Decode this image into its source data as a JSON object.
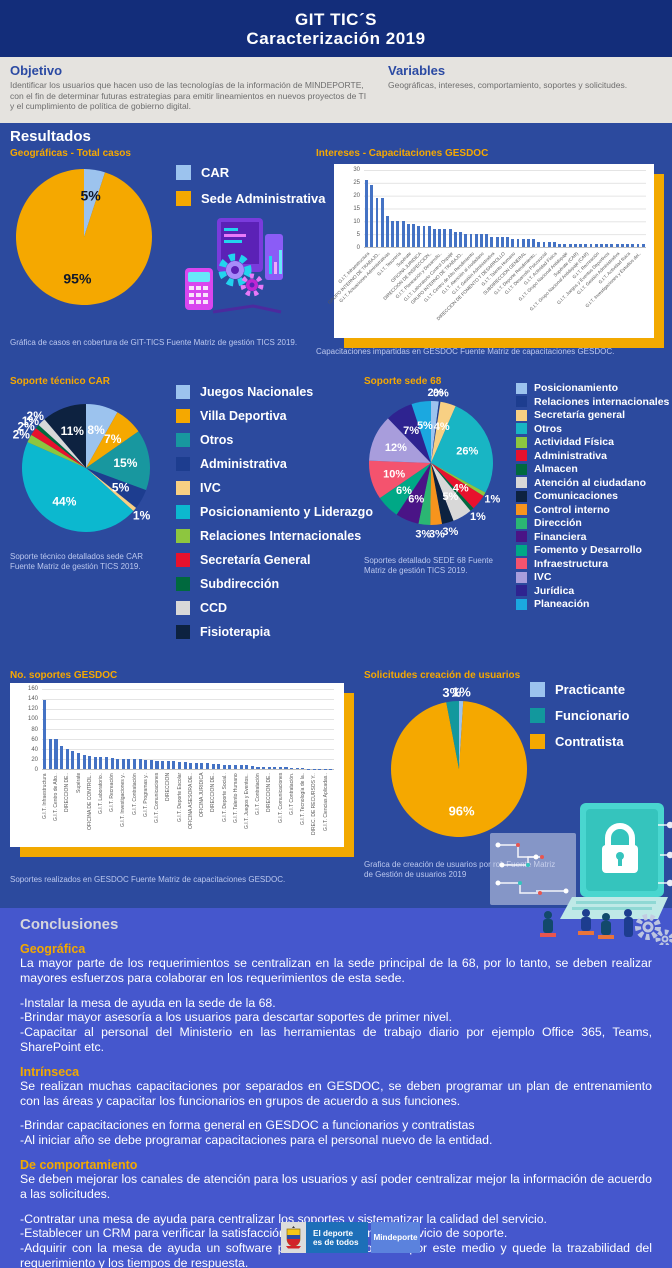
{
  "header": {
    "title_line1": "GIT TIC´S",
    "title_line2": "Caracterización 2019"
  },
  "objetivo": {
    "heading": "Objetivo",
    "body": "Identificar los usuarios que hacen uso de las tecnologías de la información de MINDEPORTE, con el fin de determinar futuras estrategias para emitir lineamientos en nuevos proyectos de TI y el cumplimiento de política de gobierno digital."
  },
  "variables": {
    "heading": "Variables",
    "body": "Geográficas, intereses, comportamiento, soportes y solicitudes."
  },
  "resultados_heading": "Resultados",
  "colors": {
    "header_navy": "#132d7a",
    "results_blue": "#2c4a9e",
    "conclusions_blue": "#4557cd",
    "accent_orange": "#f6a800",
    "bar_blue": "#4472c4",
    "band_gray": "#e5e3df"
  },
  "chart_data": [
    {
      "key": "geograficas",
      "type": "pie",
      "title": "Geográficas - Total casos",
      "caption": "Gráfica de casos en cobertura de GIT-TICS Fuente Matriz de gestión TICS 2019.",
      "pct_color": "#10182b",
      "pct_size": 14,
      "inside_min": 5,
      "slices": [
        {
          "label": "CAR",
          "value": 5,
          "color": "#9cc3ee"
        },
        {
          "label": "Sede Administrativa",
          "value": 95,
          "color": "#f5a800"
        }
      ]
    },
    {
      "key": "intereses",
      "type": "bar",
      "title": "Intereses - Capacitaciones GESDOC",
      "caption": "Capacitaciones impartidas en GESDOC Fuente Matriz de capacitaciones GESDOC.",
      "ylim": [
        0,
        30
      ],
      "yticks": [
        0,
        5,
        10,
        15,
        20,
        25,
        30
      ],
      "bar_color": "#4472c4",
      "label_style": "angled",
      "label_every": 2,
      "values": [
        26,
        24,
        19,
        19,
        12,
        10,
        10,
        10,
        9,
        9,
        8,
        8,
        8,
        7,
        7,
        7,
        7,
        6,
        6,
        5,
        5,
        5,
        5,
        5,
        4,
        4,
        4,
        4,
        3,
        3,
        3,
        3,
        3,
        2,
        2,
        2,
        2,
        1,
        1,
        1,
        1,
        1,
        1,
        1,
        1,
        1,
        1,
        1,
        1,
        1,
        1,
        1,
        1,
        1
      ],
      "labels": [
        "G.I.T. Infraestructura",
        "GRUPO INTERNO DE TRABAJO..",
        "G.I.T. Actuaciones Administrativas",
        "G.I.T. Tesorería",
        "Supérate",
        "OFICINA JURIDICA",
        "DIRECCION DE INSPECCION..",
        "G.I.T. Planeación y Desarrollo..",
        "G.I.T. Laboratorio Control Dopaje",
        "GRUPO INTERNO DE TRABAJO..",
        "G.I.T. Centro de Alto Rendimiento",
        "G.I.T. Atención al ciudadano",
        "G.I.T. Gestión Administrativa",
        "DIRECCION DE FOMENTO Y DESARROLLO",
        "G.I.T. Talento Humano",
        "SUBDIRECCION GENERAL",
        "G.I.T. Deporte Rendimiento..",
        "G.I.T. Desarrollo Psicosocial",
        "G.I.T. Actividad Física",
        "G.I.T. Grupo Nacional Antidopaje",
        "Supérate (CAR)",
        "G.I.T. Grupo Nacional Antidopaje (CAR)",
        "G.I.T. Recreación",
        "G.I.T. Juegos y Eventos Deportivos",
        "G.I.T. Gestión Administrativa",
        "G.I.T. Actividad física",
        "G.I.T. Investigaciones y Estudios del.."
      ]
    },
    {
      "key": "soporte_car",
      "type": "pie",
      "title": "Soporte técnico CAR",
      "caption": "Soporte técnico detallados sede CAR Fuente Matriz de gestión TICS 2019.",
      "pct_color": "#ffffff",
      "pct_size": 12,
      "inside_min": 5,
      "slices": [
        {
          "label": "Juegos Nacionales",
          "value": 8,
          "color": "#9cc3ee"
        },
        {
          "label": "Villa Deportiva",
          "value": 7,
          "color": "#f5a800"
        },
        {
          "label": "Otros",
          "value": 15,
          "color": "#18979f"
        },
        {
          "label": "Administrativa",
          "value": 5,
          "color": "#1d3d8f"
        },
        {
          "label": "IVC",
          "value": 1,
          "color": "#f8d083"
        },
        {
          "label": "Posicionamiento y Liderazgo",
          "value": 44,
          "color": "#0cb8cf"
        },
        {
          "label": "Relaciones Internacionales",
          "value": 2,
          "color": "#8dc63f"
        },
        {
          "label": "Secretaría General",
          "value": 2,
          "color": "#e8112d"
        },
        {
          "label": "Subdirección",
          "value": 1,
          "color": "#00693e"
        },
        {
          "label": "CCD",
          "value": 2,
          "color": "#d8d8d8"
        },
        {
          "label": "Fisioterapia",
          "value": 11,
          "color": "#0d2240"
        }
      ]
    },
    {
      "key": "sede68",
      "type": "pie",
      "title": "Soporte sede 68",
      "caption": "Soportes detallado SEDE 68 Fuente Matriz de gestión TICS 2019.",
      "pct_color": "#ffffff",
      "pct_size": 11,
      "inside_min": 4,
      "slices": [
        {
          "label": "Posicionamiento",
          "value": 2,
          "color": "#9cc3ee"
        },
        {
          "label": "Relaciones internacionales",
          "value": 0,
          "color": "#1d3d8f"
        },
        {
          "label": "Secretaría general",
          "value": 4,
          "color": "#f8d083"
        },
        {
          "label": "Otros",
          "value": 26,
          "color": "#18b5c4"
        },
        {
          "label": "Actividad Física",
          "value": 1,
          "color": "#8dc63f"
        },
        {
          "label": "Administrativa",
          "value": 4,
          "color": "#e8112d"
        },
        {
          "label": "Almacen",
          "value": 1,
          "color": "#00693e"
        },
        {
          "label": "Atención al ciudadano",
          "value": 5,
          "color": "#d8d8d8"
        },
        {
          "label": "Comunicaciones",
          "value": 3,
          "color": "#0d2240"
        },
        {
          "label": "Control interno",
          "value": 3,
          "color": "#f7941d"
        },
        {
          "label": "Dirección",
          "value": 3,
          "color": "#2bb673"
        },
        {
          "label": "Financiera",
          "value": 6,
          "color": "#4a1486"
        },
        {
          "label": "Fomento y Desarrollo",
          "value": 6,
          "color": "#00a886"
        },
        {
          "label": "Infraestructura",
          "value": 10,
          "color": "#f4536e"
        },
        {
          "label": "IVC",
          "value": 12,
          "color": "#a89ddc"
        },
        {
          "label": "Jurídica",
          "value": 7,
          "color": "#2e2390"
        },
        {
          "label": "Planeación",
          "value": 5,
          "color": "#1ba8e0"
        }
      ]
    },
    {
      "key": "soportes_gesdoc",
      "type": "bar",
      "title": "No. soportes GESDOC",
      "caption": "Soportes realizados en GESDOC Fuente Matriz de capacitaciones GESDOC.",
      "ylim": [
        0,
        160
      ],
      "yticks": [
        0,
        20,
        40,
        60,
        80,
        100,
        120,
        140,
        160
      ],
      "bar_color": "#4472c4",
      "label_style": "vertical",
      "label_every": 2,
      "values": [
        138,
        60,
        59,
        46,
        40,
        36,
        32,
        28,
        26,
        25,
        24,
        23,
        22,
        21,
        20,
        20,
        19,
        19,
        18,
        18,
        17,
        16,
        16,
        15,
        14,
        14,
        13,
        12,
        12,
        11,
        10,
        10,
        9,
        9,
        8,
        8,
        7,
        6,
        5,
        5,
        4,
        4,
        3,
        3,
        2,
        2,
        2,
        1,
        1,
        1,
        1,
        1
      ],
      "labels": [
        "G.I.T. Infraestructura",
        "G.I.T. Centro de Alto..",
        "DIRECCION DE..",
        "Supérate",
        "OFICINA DE CONTROL..",
        "G.I.T. Laboratorio..",
        "G.I.T. Recreación",
        "G.I.T. Investigaciones y..",
        "G.I.T. Contratación",
        "G.I.T. Programas y..",
        "G.I.T. Comunicaciones",
        "DIRECCION",
        "G.I.T. Deporte Escolar",
        "OFICINA ASESORA DE..",
        "OFICINA JURIDICA",
        "DIRECCION DE..",
        "G.I.T. Deporte Social..",
        "G.I.T. Talento Humano",
        "G.I.T. Juegos y Eventos..",
        "G.I.T. Contratación",
        "DIRECCION DE..",
        "G.I.T. Comunicaciones",
        "G.I.T Contratación.",
        "G.I.T. Tecnología de la..",
        "DIREC. DE RECURSOS Y..",
        "G.I.T. Ciencias Aplicadas.."
      ]
    },
    {
      "key": "usuarios",
      "type": "pie",
      "title": "Solicitudes creación de usuarios",
      "caption": "Grafica de creación de usuarios por rol. Fuente Matriz de Gestión de usuarios 2019",
      "pct_color": "#ffffff",
      "pct_size": 13,
      "inside_min": 5,
      "legend_order": [
        0,
        2,
        1
      ],
      "slices": [
        {
          "label": "Practicante",
          "value": 1,
          "color": "#9cc3ee"
        },
        {
          "label": "Contratista",
          "value": 96,
          "color": "#f5a800"
        },
        {
          "label": "Funcionario",
          "value": 3,
          "color": "#12989d"
        }
      ]
    }
  ],
  "conclusiones": {
    "heading": "Conclusiones",
    "sections": [
      {
        "heading": "Geográfica",
        "paragraphs": [
          [
            "La mayor parte de los requerimientos se centralizan en la sede principal de la 68, por lo tanto, se deben realizar mayores esfuerzos para colaborar en los requerimientos de esta sede."
          ],
          [
            "-Instalar la mesa de ayuda en la sede de la 68.",
            "-Brindar mayor asesoría a los usuarios para descartar soportes de primer nivel.",
            "-Capacitar al personal del Ministerio en las herramientas de trabajo diario por ejemplo Office 365, Teams, SharePoint etc."
          ]
        ]
      },
      {
        "heading": "Intrínseca",
        "paragraphs": [
          [
            "Se realizan muchas capacitaciones por separados en GESDOC, se deben programar un plan de entrenamiento con las áreas y capacitar los funcionarios en grupos de acuerdo a sus funciones."
          ],
          [
            "-Brindar capacitaciones en forma general en GESDOC a funcionarios y contratistas",
            "-Al iniciar año se debe programar capacitaciones para el personal nuevo de la entidad."
          ]
        ]
      },
      {
        "heading": "De comportamiento",
        "paragraphs": [
          [
            "Se deben mejorar los canales de atención para los usuarios y así poder centralizar mejor la información de acuerdo a las solicitudes."
          ],
          [
            "-Contratar una mesa de ayuda para centralizar los soportes y sistematizar la calidad del servicio.",
            "-Establecer un CRM para verificar la satisfacción del usuario frente al servicio de soporte.",
            "-Adquirir con la mesa de ayuda un software para hacer la solicitud por este medio y quede la trazabilidad del requerimiento y los tiempos de respuesta."
          ]
        ]
      }
    ]
  },
  "footer": {
    "slogan_line1": "El deporte",
    "slogan_line2": "es de todos",
    "brand": "Mindeporte"
  }
}
